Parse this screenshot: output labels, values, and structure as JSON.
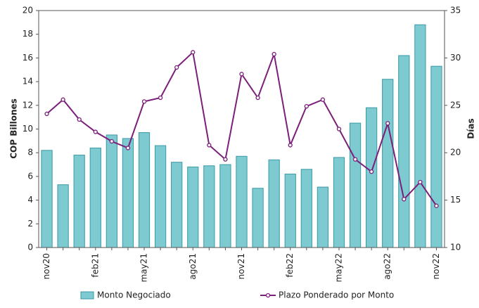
{
  "chart_data": {
    "type": "bar-line",
    "categories": [
      "nov20",
      null,
      null,
      "feb21",
      null,
      null,
      "may21",
      null,
      null,
      "ago21",
      null,
      null,
      "nov21",
      null,
      null,
      "feb22",
      null,
      null,
      "may22",
      null,
      null,
      "ago22",
      null,
      null,
      "nov22"
    ],
    "y_label": "COP Billones",
    "y2_label": "Días",
    "series": [
      {
        "name": "Monto Negociado",
        "type": "bar",
        "color": "#7ecad1",
        "edge_color": "#3a9aa5",
        "values": [
          8.2,
          5.3,
          7.8,
          8.4,
          9.5,
          9.2,
          9.7,
          8.6,
          7.2,
          6.8,
          6.9,
          7.0,
          7.7,
          5.0,
          7.4,
          6.2,
          6.6,
          5.1,
          7.6,
          10.5,
          11.8,
          14.2,
          16.2,
          18.8,
          15.3
        ]
      },
      {
        "name": "Plazo Ponderado por Monto",
        "type": "line",
        "axis": "y2",
        "color": "#7b1f7a",
        "values": [
          24.1,
          25.6,
          23.5,
          22.2,
          21.2,
          20.5,
          25.4,
          25.8,
          29.0,
          30.6,
          20.8,
          19.3,
          28.3,
          25.8,
          30.4,
          20.8,
          24.9,
          25.6,
          22.5,
          19.3,
          18.0,
          23.1,
          15.1,
          16.9,
          14.4
        ]
      }
    ],
    "ylim": [
      0,
      20
    ],
    "yticks": [
      0,
      2,
      4,
      6,
      8,
      10,
      12,
      14,
      16,
      18,
      20
    ],
    "y2lim": [
      10,
      35
    ],
    "y2ticks": [
      10,
      15,
      20,
      25,
      30,
      35
    ],
    "legend": "bottom"
  }
}
